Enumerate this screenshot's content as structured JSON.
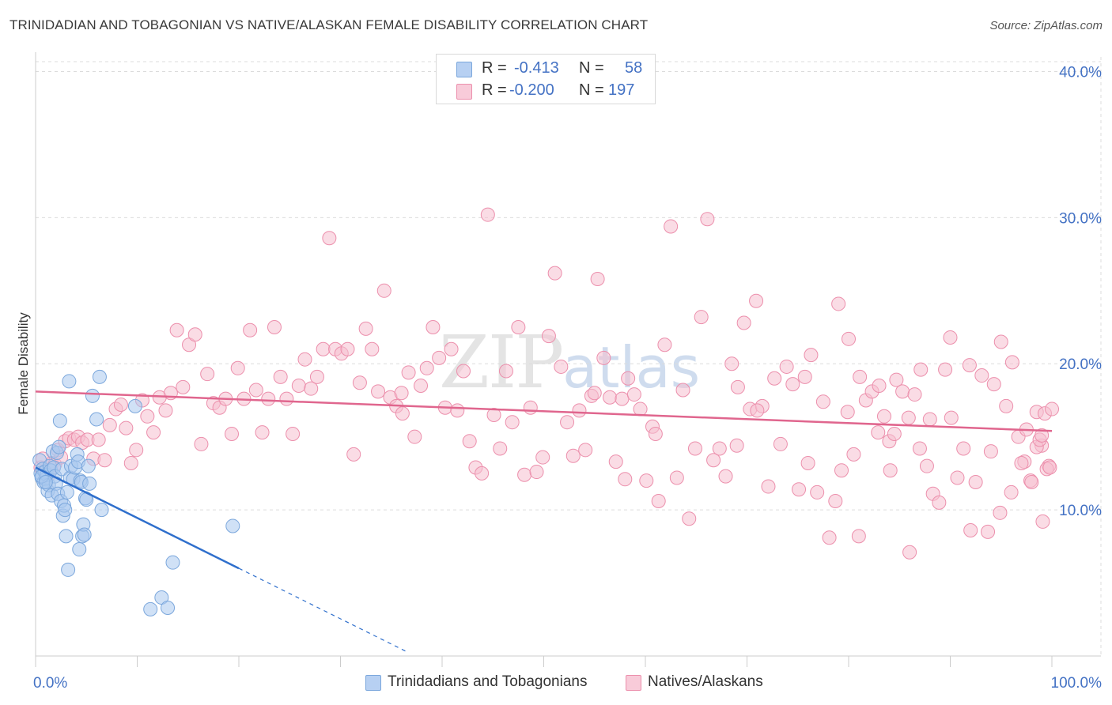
{
  "header": {
    "title": "TRINIDADIAN AND TOBAGONIAN VS NATIVE/ALASKAN FEMALE DISABILITY CORRELATION CHART",
    "source": "Source: ZipAtlas.com"
  },
  "watermark": {
    "zip": "ZIP",
    "atlas": "atlas"
  },
  "legend": {
    "series1": {
      "r_label": "R =",
      "r_value": "-0.413",
      "n_label": "N =",
      "n_value": "58"
    },
    "series2": {
      "r_label": "R =",
      "r_value": "-0.200",
      "n_label": "N =",
      "n_value": "197"
    }
  },
  "colors": {
    "blue_fill": "#a9c8ef",
    "blue_stroke": "#7ba7dc",
    "blue_line": "#2f6fcc",
    "pink_fill": "#f6bfd0",
    "pink_stroke": "#ec8fac",
    "pink_line": "#e0668e",
    "grid": "#dcdcdc",
    "tick_label": "#4472c4"
  },
  "chart_data": {
    "type": "scatter",
    "title": "TRINIDADIAN AND TOBAGONIAN VS NATIVE/ALASKAN FEMALE DISABILITY CORRELATION CHART",
    "xlabel": "",
    "ylabel": "Female Disability",
    "xlim": [
      0,
      100
    ],
    "ylim": [
      0,
      41
    ],
    "x_tick_labels": [
      "0.0%",
      "100.0%"
    ],
    "y_ticks": [
      10,
      20,
      30,
      40
    ],
    "y_tick_labels": [
      "10.0%",
      "20.0%",
      "30.0%",
      "40.0%"
    ],
    "series": [
      {
        "name": "Trinidadians and Tobagonians",
        "r": -0.413,
        "n": 58,
        "trend": {
          "x0": 0,
          "y0": 12.9,
          "x1": 20,
          "y1": 6.0,
          "dashed_to_x": 36.5,
          "dashed_to_y": 0.3
        },
        "points": [
          [
            0.4,
            13.4
          ],
          [
            0.5,
            12.5
          ],
          [
            0.6,
            12.2
          ],
          [
            0.7,
            12.8
          ],
          [
            0.8,
            11.9
          ],
          [
            0.9,
            12.6
          ],
          [
            1.0,
            12.1
          ],
          [
            1.1,
            12.4
          ],
          [
            1.2,
            11.3
          ],
          [
            1.3,
            11.7
          ],
          [
            1.4,
            13.0
          ],
          [
            1.5,
            12.7
          ],
          [
            1.6,
            11.0
          ],
          [
            1.7,
            14.0
          ],
          [
            1.8,
            12.9
          ],
          [
            1.9,
            12.3
          ],
          [
            2.0,
            11.8
          ],
          [
            2.1,
            13.9
          ],
          [
            2.2,
            11.1
          ],
          [
            2.3,
            14.3
          ],
          [
            2.4,
            16.1
          ],
          [
            2.5,
            10.6
          ],
          [
            2.6,
            12.8
          ],
          [
            2.7,
            9.6
          ],
          [
            2.8,
            10.3
          ],
          [
            2.9,
            10.0
          ],
          [
            3.0,
            8.2
          ],
          [
            3.1,
            11.2
          ],
          [
            3.2,
            5.9
          ],
          [
            3.3,
            18.8
          ],
          [
            3.4,
            12.2
          ],
          [
            3.5,
            13.0
          ],
          [
            3.7,
            12.1
          ],
          [
            3.9,
            12.9
          ],
          [
            4.1,
            13.8
          ],
          [
            4.2,
            13.3
          ],
          [
            4.3,
            7.3
          ],
          [
            4.4,
            12.0
          ],
          [
            4.5,
            11.9
          ],
          [
            4.6,
            8.2
          ],
          [
            4.7,
            9.0
          ],
          [
            4.8,
            8.3
          ],
          [
            4.9,
            10.8
          ],
          [
            5.0,
            10.7
          ],
          [
            5.2,
            13.0
          ],
          [
            5.3,
            11.8
          ],
          [
            5.6,
            17.8
          ],
          [
            6.0,
            16.2
          ],
          [
            6.3,
            19.1
          ],
          [
            6.5,
            10.0
          ],
          [
            9.8,
            17.1
          ],
          [
            11.3,
            3.2
          ],
          [
            12.4,
            4.0
          ],
          [
            13.0,
            3.3
          ],
          [
            13.5,
            6.4
          ],
          [
            19.4,
            8.9
          ],
          [
            0.6,
            12.3
          ],
          [
            1.0,
            11.9
          ]
        ]
      },
      {
        "name": "Natives/Alaskans",
        "r": -0.2,
        "n": 197,
        "trend": {
          "x0": 0,
          "y0": 18.1,
          "x1": 100,
          "y1": 15.4
        },
        "points": [
          [
            0.5,
            12.9
          ],
          [
            0.7,
            13.5
          ],
          [
            1.0,
            12.6
          ],
          [
            1.3,
            12.4
          ],
          [
            1.6,
            13.2
          ],
          [
            1.9,
            13.1
          ],
          [
            2.2,
            14.1
          ],
          [
            2.5,
            13.6
          ],
          [
            2.9,
            14.7
          ],
          [
            3.3,
            14.9
          ],
          [
            3.8,
            14.8
          ],
          [
            4.2,
            15.0
          ],
          [
            4.6,
            14.6
          ],
          [
            5.1,
            14.8
          ],
          [
            5.7,
            13.5
          ],
          [
            6.2,
            14.8
          ],
          [
            6.8,
            13.4
          ],
          [
            7.3,
            15.8
          ],
          [
            7.9,
            16.9
          ],
          [
            8.4,
            17.2
          ],
          [
            8.9,
            15.6
          ],
          [
            9.4,
            13.2
          ],
          [
            9.9,
            14.1
          ],
          [
            10.5,
            17.5
          ],
          [
            11.0,
            16.4
          ],
          [
            11.6,
            15.3
          ],
          [
            12.2,
            17.7
          ],
          [
            12.8,
            16.8
          ],
          [
            13.3,
            18.0
          ],
          [
            13.9,
            22.3
          ],
          [
            14.5,
            18.4
          ],
          [
            15.1,
            21.3
          ],
          [
            15.7,
            22.0
          ],
          [
            16.3,
            14.5
          ],
          [
            16.9,
            19.3
          ],
          [
            17.5,
            17.3
          ],
          [
            18.1,
            17.0
          ],
          [
            18.7,
            17.6
          ],
          [
            19.3,
            15.2
          ],
          [
            19.9,
            19.7
          ],
          [
            20.5,
            17.6
          ],
          [
            21.1,
            22.3
          ],
          [
            21.7,
            18.2
          ],
          [
            22.3,
            15.3
          ],
          [
            22.9,
            17.6
          ],
          [
            23.5,
            22.5
          ],
          [
            24.1,
            19.1
          ],
          [
            24.7,
            17.6
          ],
          [
            25.3,
            15.2
          ],
          [
            25.9,
            18.5
          ],
          [
            26.5,
            20.3
          ],
          [
            27.1,
            18.3
          ],
          [
            27.7,
            19.1
          ],
          [
            28.3,
            21.0
          ],
          [
            28.9,
            28.6
          ],
          [
            29.5,
            21.0
          ],
          [
            30.1,
            20.7
          ],
          [
            30.7,
            21.0
          ],
          [
            31.3,
            13.8
          ],
          [
            31.9,
            18.7
          ],
          [
            32.5,
            22.4
          ],
          [
            33.1,
            21.0
          ],
          [
            33.7,
            18.1
          ],
          [
            34.3,
            25.0
          ],
          [
            34.9,
            17.7
          ],
          [
            35.5,
            17.1
          ],
          [
            36.1,
            16.6
          ],
          [
            36.7,
            19.4
          ],
          [
            37.3,
            15.0
          ],
          [
            37.9,
            18.5
          ],
          [
            38.5,
            19.7
          ],
          [
            39.1,
            22.5
          ],
          [
            39.7,
            20.4
          ],
          [
            40.3,
            17.0
          ],
          [
            40.9,
            21.0
          ],
          [
            41.5,
            16.8
          ],
          [
            42.1,
            19.5
          ],
          [
            42.7,
            14.7
          ],
          [
            43.3,
            12.9
          ],
          [
            43.9,
            12.5
          ],
          [
            44.5,
            30.2
          ],
          [
            45.1,
            16.5
          ],
          [
            45.7,
            14.2
          ],
          [
            46.3,
            19.5
          ],
          [
            46.9,
            16.0
          ],
          [
            47.5,
            22.5
          ],
          [
            48.1,
            12.4
          ],
          [
            48.7,
            17.0
          ],
          [
            49.3,
            12.6
          ],
          [
            49.9,
            13.6
          ],
          [
            50.5,
            21.9
          ],
          [
            51.1,
            26.2
          ],
          [
            51.7,
            19.8
          ],
          [
            52.3,
            16.0
          ],
          [
            52.9,
            13.7
          ],
          [
            53.5,
            16.8
          ],
          [
            54.1,
            14.1
          ],
          [
            54.7,
            17.8
          ],
          [
            55.3,
            25.8
          ],
          [
            55.9,
            20.4
          ],
          [
            56.5,
            17.7
          ],
          [
            57.1,
            13.3
          ],
          [
            57.7,
            17.6
          ],
          [
            58.3,
            19.0
          ],
          [
            58.9,
            17.9
          ],
          [
            59.5,
            16.9
          ],
          [
            60.1,
            12.0
          ],
          [
            60.7,
            15.7
          ],
          [
            61.3,
            10.6
          ],
          [
            61.9,
            21.3
          ],
          [
            62.5,
            29.4
          ],
          [
            63.1,
            12.2
          ],
          [
            63.7,
            18.2
          ],
          [
            64.3,
            9.4
          ],
          [
            64.9,
            14.2
          ],
          [
            65.5,
            23.2
          ],
          [
            66.1,
            29.9
          ],
          [
            66.7,
            13.4
          ],
          [
            67.3,
            14.2
          ],
          [
            67.9,
            12.3
          ],
          [
            68.5,
            20.0
          ],
          [
            69.1,
            18.4
          ],
          [
            69.7,
            22.8
          ],
          [
            70.3,
            16.9
          ],
          [
            70.9,
            24.3
          ],
          [
            71.5,
            17.1
          ],
          [
            72.1,
            11.6
          ],
          [
            72.7,
            19.0
          ],
          [
            73.3,
            14.5
          ],
          [
            73.9,
            19.8
          ],
          [
            74.5,
            18.6
          ],
          [
            75.1,
            11.4
          ],
          [
            75.7,
            19.1
          ],
          [
            76.3,
            20.6
          ],
          [
            76.9,
            11.2
          ],
          [
            77.5,
            17.4
          ],
          [
            78.1,
            8.1
          ],
          [
            78.7,
            10.6
          ],
          [
            79.3,
            12.7
          ],
          [
            79.9,
            16.7
          ],
          [
            80.5,
            13.8
          ],
          [
            81.1,
            19.1
          ],
          [
            81.7,
            17.5
          ],
          [
            82.3,
            18.1
          ],
          [
            82.9,
            15.3
          ],
          [
            83.5,
            16.4
          ],
          [
            84.1,
            12.7
          ],
          [
            84.7,
            18.9
          ],
          [
            85.3,
            18.1
          ],
          [
            85.9,
            16.3
          ],
          [
            86.5,
            17.9
          ],
          [
            87.1,
            19.6
          ],
          [
            87.7,
            13.0
          ],
          [
            88.3,
            11.1
          ],
          [
            88.9,
            10.5
          ],
          [
            89.5,
            19.6
          ],
          [
            90.1,
            16.3
          ],
          [
            90.7,
            12.2
          ],
          [
            91.3,
            14.2
          ],
          [
            91.9,
            19.9
          ],
          [
            92.5,
            11.9
          ],
          [
            93.1,
            19.2
          ],
          [
            93.7,
            8.5
          ],
          [
            94.3,
            18.6
          ],
          [
            94.9,
            9.8
          ],
          [
            95.5,
            17.1
          ],
          [
            96.1,
            20.1
          ],
          [
            96.7,
            15.0
          ],
          [
            97.3,
            13.3
          ],
          [
            97.9,
            12.0
          ],
          [
            98.5,
            16.7
          ],
          [
            99.1,
            9.2
          ],
          [
            99.7,
            13.0
          ],
          [
            36.0,
            18.0
          ],
          [
            55.0,
            18.0
          ],
          [
            76.0,
            13.2
          ],
          [
            83.0,
            18.5
          ],
          [
            87.0,
            14.2
          ],
          [
            90.0,
            21.8
          ],
          [
            95.0,
            21.5
          ],
          [
            97.0,
            13.2
          ],
          [
            98.0,
            11.9
          ],
          [
            99.0,
            14.4
          ],
          [
            99.5,
            12.8
          ],
          [
            99.8,
            12.9
          ],
          [
            69.0,
            14.4
          ],
          [
            71.0,
            16.8
          ],
          [
            58.0,
            12.1
          ],
          [
            61.0,
            15.2
          ],
          [
            79.0,
            24.1
          ],
          [
            84.0,
            14.7
          ],
          [
            86.0,
            7.1
          ],
          [
            88.0,
            16.2
          ],
          [
            92.0,
            8.6
          ],
          [
            94.0,
            14.0
          ],
          [
            96.0,
            11.2
          ],
          [
            98.5,
            14.3
          ],
          [
            99.3,
            16.6
          ],
          [
            97.5,
            15.5
          ],
          [
            98.8,
            14.8
          ],
          [
            100.0,
            16.9
          ],
          [
            99.0,
            15.1
          ],
          [
            81.0,
            8.2
          ],
          [
            84.5,
            15.2
          ],
          [
            80.0,
            21.7
          ]
        ]
      }
    ]
  },
  "bottom_legend": {
    "series1_label": "Trinidadians and Tobagonians",
    "series2_label": "Natives/Alaskans"
  }
}
